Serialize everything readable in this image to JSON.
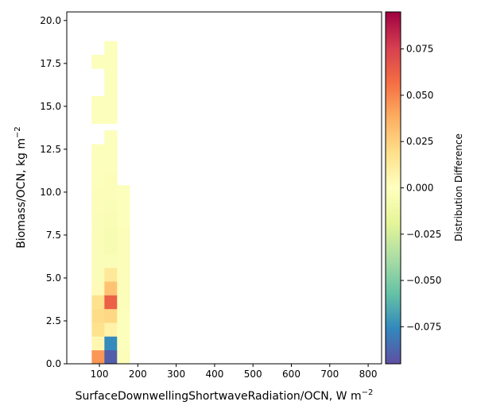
{
  "chart_data": {
    "type": "heatmap",
    "xlabel": "SurfaceDownwellingShortwaveRadiation/OCN,  W m",
    "xlabel_sup": "−2",
    "ylabel": "Biomass/OCN,  kg m",
    "ylabel_sup": "−2",
    "colorbar_label": "Distribution Difference",
    "xlim": [
      15,
      835
    ],
    "ylim": [
      0,
      20.5
    ],
    "x_ticks": [
      100,
      200,
      300,
      400,
      500,
      600,
      700,
      800
    ],
    "x_tick_labels": [
      "100",
      "200",
      "300",
      "400",
      "500",
      "600",
      "700",
      "800"
    ],
    "y_ticks": [
      0,
      2.5,
      5,
      7.5,
      10,
      12.5,
      15,
      17.5,
      20
    ],
    "y_tick_labels": [
      "0.0",
      "2.5",
      "5.0",
      "7.5",
      "10.0",
      "12.5",
      "15.0",
      "17.5",
      "20.0"
    ],
    "colorbar_range": [
      -0.095,
      0.095
    ],
    "colorbar_ticks": [
      -0.075,
      -0.05,
      -0.025,
      0,
      0.025,
      0.05,
      0.075
    ],
    "colorbar_tick_labels": [
      "−0.075",
      "−0.050",
      "−0.025",
      "0.000",
      "0.025",
      "0.050",
      "0.075"
    ],
    "colormap": "Spectral_r",
    "grid": false,
    "bin_width_x": 33,
    "bin_height_y": 0.8,
    "cells": [
      {
        "x": 80,
        "y": 0,
        "value": 0.045
      },
      {
        "x": 113,
        "y": 0,
        "value": -0.09
      },
      {
        "x": 146,
        "y": 0,
        "value": -0.003
      },
      {
        "x": 80,
        "y": 0.8,
        "value": 0.005
      },
      {
        "x": 113,
        "y": 0.8,
        "value": -0.075
      },
      {
        "x": 146,
        "y": 0.8,
        "value": -0.002
      },
      {
        "x": 80,
        "y": 1.6,
        "value": 0.018
      },
      {
        "x": 113,
        "y": 1.6,
        "value": 0.008
      },
      {
        "x": 146,
        "y": 1.6,
        "value": -0.002
      },
      {
        "x": 80,
        "y": 2.4,
        "value": 0.02
      },
      {
        "x": 113,
        "y": 2.4,
        "value": 0.022
      },
      {
        "x": 146,
        "y": 2.4,
        "value": -0.002
      },
      {
        "x": 80,
        "y": 3.2,
        "value": 0.018
      },
      {
        "x": 113,
        "y": 3.2,
        "value": 0.062
      },
      {
        "x": 146,
        "y": 3.2,
        "value": -0.003
      },
      {
        "x": 80,
        "y": 4.0,
        "value": 0.003
      },
      {
        "x": 113,
        "y": 4.0,
        "value": 0.03
      },
      {
        "x": 146,
        "y": 4.0,
        "value": -0.003
      },
      {
        "x": 80,
        "y": 4.8,
        "value": -0.004
      },
      {
        "x": 113,
        "y": 4.8,
        "value": 0.014
      },
      {
        "x": 146,
        "y": 4.8,
        "value": -0.003
      },
      {
        "x": 80,
        "y": 5.6,
        "value": -0.004
      },
      {
        "x": 113,
        "y": 5.6,
        "value": -0.004
      },
      {
        "x": 146,
        "y": 5.6,
        "value": -0.003
      },
      {
        "x": 80,
        "y": 6.4,
        "value": -0.004
      },
      {
        "x": 113,
        "y": 6.4,
        "value": -0.006
      },
      {
        "x": 146,
        "y": 6.4,
        "value": -0.003
      },
      {
        "x": 80,
        "y": 7.2,
        "value": -0.004
      },
      {
        "x": 113,
        "y": 7.2,
        "value": -0.006
      },
      {
        "x": 146,
        "y": 7.2,
        "value": -0.003
      },
      {
        "x": 80,
        "y": 8.0,
        "value": -0.004
      },
      {
        "x": 113,
        "y": 8.0,
        "value": -0.005
      },
      {
        "x": 146,
        "y": 8.0,
        "value": -0.002
      },
      {
        "x": 80,
        "y": 8.8,
        "value": -0.003
      },
      {
        "x": 113,
        "y": 8.8,
        "value": -0.004
      },
      {
        "x": 146,
        "y": 8.8,
        "value": -0.002
      },
      {
        "x": 80,
        "y": 9.6,
        "value": -0.003
      },
      {
        "x": 113,
        "y": 9.6,
        "value": -0.003
      },
      {
        "x": 146,
        "y": 9.6,
        "value": -0.002
      },
      {
        "x": 80,
        "y": 10.4,
        "value": -0.002
      },
      {
        "x": 113,
        "y": 10.4,
        "value": -0.003
      },
      {
        "x": 80,
        "y": 11.2,
        "value": -0.002
      },
      {
        "x": 113,
        "y": 11.2,
        "value": -0.002
      },
      {
        "x": 80,
        "y": 12.0,
        "value": -0.002
      },
      {
        "x": 113,
        "y": 12.0,
        "value": -0.002
      },
      {
        "x": 113,
        "y": 12.8,
        "value": -0.002
      },
      {
        "x": 80,
        "y": 14.0,
        "value": -0.002
      },
      {
        "x": 113,
        "y": 14.0,
        "value": -0.002
      },
      {
        "x": 80,
        "y": 14.8,
        "value": -0.002
      },
      {
        "x": 113,
        "y": 14.8,
        "value": -0.002
      },
      {
        "x": 113,
        "y": 15.6,
        "value": -0.002
      },
      {
        "x": 113,
        "y": 16.4,
        "value": -0.002
      },
      {
        "x": 80,
        "y": 17.2,
        "value": -0.002
      },
      {
        "x": 113,
        "y": 17.2,
        "value": -0.002
      },
      {
        "x": 113,
        "y": 18.0,
        "value": -0.002
      }
    ]
  }
}
